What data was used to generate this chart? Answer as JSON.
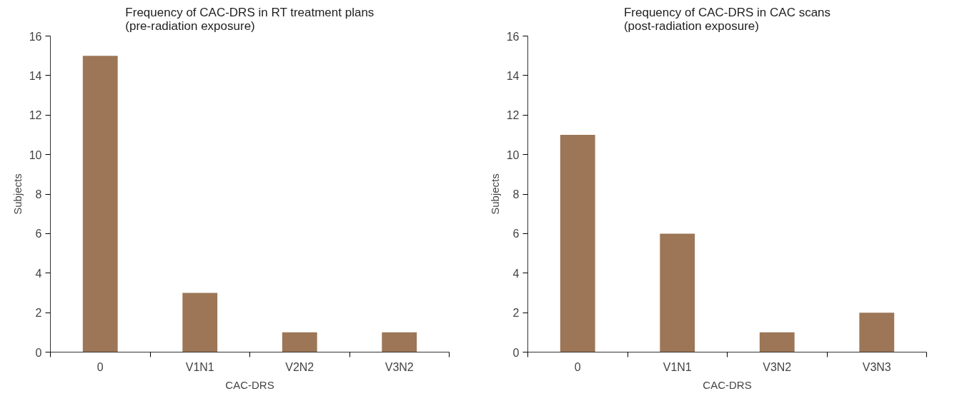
{
  "chart_data": [
    {
      "type": "bar",
      "title": "Frequency of CAC-DRS in RT treatment plans\n(pre-radiation exposure)",
      "xlabel": "CAC-DRS",
      "ylabel": "Subjects",
      "categories": [
        "0",
        "V1N1",
        "V2N2",
        "V3N2"
      ],
      "values": [
        15,
        3,
        1,
        1
      ],
      "color": "#9c7656",
      "ylim": [
        0,
        16
      ],
      "yticks": [
        0,
        2,
        4,
        6,
        8,
        10,
        12,
        14,
        16
      ],
      "grid": false
    },
    {
      "type": "bar",
      "title": "Frequency of CAC-DRS in CAC scans\n(post-radiation exposure)",
      "xlabel": "CAC-DRS",
      "ylabel": "Subjects",
      "categories": [
        "0",
        "V1N1",
        "V3N2",
        "V3N3"
      ],
      "values": [
        11,
        6,
        1,
        2
      ],
      "color": "#9c7656",
      "ylim": [
        0,
        16
      ],
      "yticks": [
        0,
        2,
        4,
        6,
        8,
        10,
        12,
        14,
        16
      ],
      "grid": false
    }
  ]
}
